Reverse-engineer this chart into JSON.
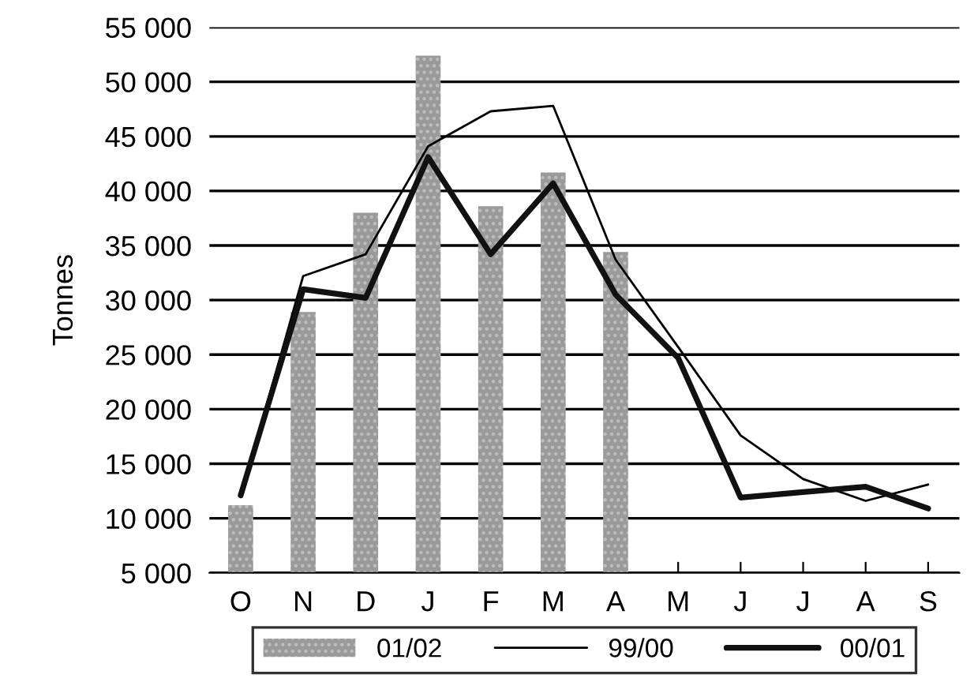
{
  "chart_data": {
    "type": "bar",
    "ylabel": "Tonnes",
    "categories": [
      "O",
      "N",
      "D",
      "J",
      "F",
      "M",
      "A",
      "M",
      "J",
      "J",
      "A",
      "S"
    ],
    "series": [
      {
        "name": "01/02",
        "color": "#9a9a9a",
        "values": [
          11200,
          28900,
          38000,
          52400,
          38600,
          41700,
          34400,
          null,
          null,
          null,
          null,
          null
        ]
      },
      {
        "name": "99/00",
        "type": "line",
        "color": "#000000",
        "values": [
          12000,
          32200,
          34200,
          44100,
          47300,
          47800,
          33700,
          25700,
          17600,
          13600,
          11600,
          13100
        ]
      },
      {
        "name": "00/01",
        "type": "line",
        "color": "#111111",
        "values": [
          12100,
          31000,
          30200,
          43100,
          34200,
          40700,
          30500,
          24700,
          11900,
          12400,
          12900,
          10900
        ]
      }
    ],
    "ylim": [
      5000,
      55000
    ],
    "yticks": [
      {
        "value": 5000,
        "label": "5 000"
      },
      {
        "value": 10000,
        "label": "10 000"
      },
      {
        "value": 15000,
        "label": "15 000"
      },
      {
        "value": 20000,
        "label": "20 000"
      },
      {
        "value": 25000,
        "label": "25 000"
      },
      {
        "value": 30000,
        "label": "30 000"
      },
      {
        "value": 35000,
        "label": "35 000"
      },
      {
        "value": 40000,
        "label": "40 000"
      },
      {
        "value": 45000,
        "label": "45 000"
      },
      {
        "value": 50000,
        "label": "50 000"
      },
      {
        "value": 55000,
        "label": "55 000"
      }
    ],
    "grid": "y",
    "legend": "bottom",
    "marker": "none",
    "line_style": "solid"
  }
}
